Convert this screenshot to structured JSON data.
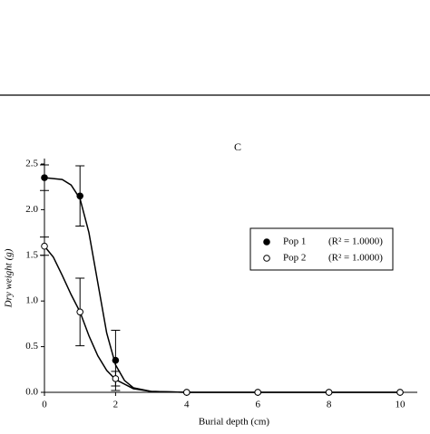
{
  "chart_data": {
    "type": "scatter",
    "title": "C",
    "xlabel": "Burial depth (cm)",
    "ylabel": "Dry weight (g)",
    "xlim": [
      0,
      10
    ],
    "ylim": [
      0,
      2.5
    ],
    "xticks": [
      0,
      2,
      4,
      6,
      8,
      10
    ],
    "yticks": [
      {
        "value": 0,
        "label": "0.0"
      },
      {
        "value": 0.5,
        "label": "0.5"
      },
      {
        "value": 1,
        "label": "1.0"
      },
      {
        "value": 1.5,
        "label": "1.5"
      },
      {
        "value": 2,
        "label": "2.0"
      },
      {
        "value": 2.5,
        "label": "2.5"
      }
    ],
    "legend": "right",
    "series": [
      {
        "name": "Pop 1",
        "r2_label": "(R² = 1.0000)",
        "color": "#000000",
        "marker": "filled",
        "x": [
          0,
          1,
          2,
          4,
          6,
          8,
          10
        ],
        "values": [
          2.35,
          2.15,
          0.35,
          0,
          0,
          0,
          0
        ],
        "errors": [
          0.14,
          0.33,
          0.33,
          null,
          null,
          null,
          null
        ],
        "fit_x": [
          0,
          0.5,
          0.75,
          1,
          1.25,
          1.5,
          1.75,
          2,
          2.25,
          2.5,
          3,
          4,
          10
        ],
        "fit_values": [
          2.35,
          2.33,
          2.27,
          2.12,
          1.75,
          1.2,
          0.65,
          0.3,
          0.13,
          0.05,
          0.01,
          0,
          0
        ]
      },
      {
        "name": "Pop 2",
        "r2_label": "(R² = 1.0000)",
        "color": "#000000",
        "marker": "open",
        "x": [
          0,
          1,
          2,
          4,
          6,
          8,
          10
        ],
        "values": [
          1.6,
          0.88,
          0.15,
          0,
          0,
          0,
          0
        ],
        "errors": [
          0.1,
          0.37,
          0.08,
          null,
          null,
          null,
          null
        ],
        "fit_x": [
          0,
          0.25,
          0.5,
          0.75,
          1,
          1.25,
          1.5,
          1.75,
          2,
          2.5,
          3,
          4,
          10
        ],
        "fit_values": [
          1.6,
          1.48,
          1.28,
          1.07,
          0.88,
          0.62,
          0.4,
          0.24,
          0.14,
          0.04,
          0.01,
          0,
          0
        ]
      }
    ]
  }
}
